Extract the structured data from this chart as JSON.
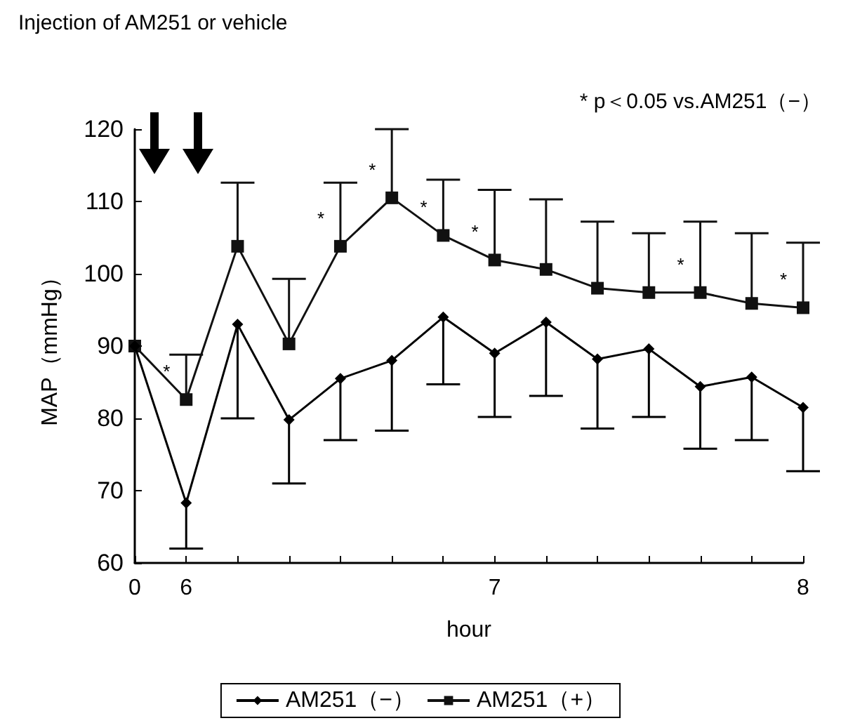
{
  "chart_data": {
    "type": "line",
    "title": "Injection of AM251 or vehicle",
    "xlabel": "hour",
    "ylabel": "MAP（mmHg）",
    "annotations": [
      "* p＜0.05 vs.AM251（−）"
    ],
    "categories": [
      "0",
      "6",
      null,
      null,
      null,
      null,
      null,
      "7",
      null,
      null,
      null,
      null,
      null,
      "8"
    ],
    "series": [
      {
        "name": "AM251（−）",
        "color": "#000000",
        "marker": "diamond",
        "values": [
          90,
          68.3,
          93,
          79.8,
          85.5,
          88,
          94,
          89,
          93.3,
          88.2,
          89.6,
          84.4,
          85.7,
          81.5
        ],
        "errors": [
          null,
          [
            62,
            68.3
          ],
          [
            80,
            93
          ],
          [
            71,
            79.8
          ],
          [
            77,
            85.5
          ],
          [
            78.3,
            88
          ],
          [
            84.7,
            94
          ],
          [
            80.2,
            89
          ],
          [
            83.1,
            93.3
          ],
          [
            78.6,
            88.2
          ],
          [
            80.2,
            89.6
          ],
          [
            75.8,
            84.4
          ],
          [
            77,
            85.7
          ],
          [
            72.7,
            81.5
          ]
        ]
      },
      {
        "name": "AM251（+）",
        "color": "#111111",
        "marker": "square",
        "values": [
          90,
          82.6,
          103.8,
          90.3,
          103.8,
          110.5,
          105.3,
          101.9,
          100.6,
          98,
          97.4,
          97.4,
          95.9,
          95.3
        ],
        "errors": [
          null,
          [
            82.6,
            88.8
          ],
          [
            103.8,
            112.6
          ],
          [
            90.3,
            99.3
          ],
          [
            103.8,
            112.6
          ],
          [
            110.5,
            120
          ],
          [
            105.3,
            113
          ],
          [
            101.9,
            111.6
          ],
          [
            100.6,
            110.3
          ],
          [
            98,
            107.2
          ],
          [
            97.4,
            105.6
          ],
          [
            97.4,
            107.2
          ],
          [
            95.9,
            105.6
          ],
          [
            95.3,
            104.3
          ]
        ],
        "value_labels": [
          null,
          "*",
          null,
          null,
          "*",
          "*",
          "*",
          "*",
          null,
          null,
          null,
          "*",
          null,
          "*"
        ]
      }
    ],
    "ylim": [
      60,
      120
    ],
    "yticks": [
      60,
      70,
      80,
      90,
      100,
      110,
      120
    ],
    "grid": false,
    "legend": "bottom",
    "line_style": "solid"
  }
}
